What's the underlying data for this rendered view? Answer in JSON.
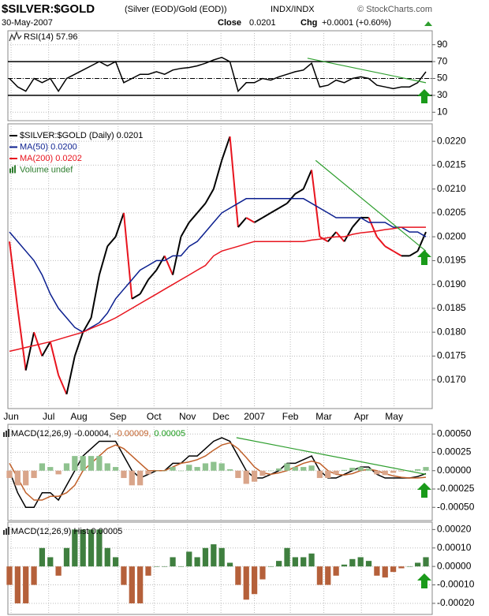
{
  "header": {
    "symbol": "$SILVER:$GOLD",
    "description": "(Silver (EOD)/Gold (EOD))",
    "exchange": "INDX/INDX",
    "source": "© StockCharts.com",
    "date": "30-May-2007",
    "close_label": "Close",
    "close": "0.0201",
    "chg_label": "Chg",
    "chg": "+0.0001 (+0.60%)"
  },
  "chart_data": [
    {
      "type": "line",
      "title": "RSI(14) 57.96",
      "xlim": [
        0,
        51
      ],
      "ylim": [
        0,
        100
      ],
      "yticks": [
        90,
        70,
        50,
        30,
        10
      ],
      "overbought": 70,
      "oversold": 30,
      "midline": 50,
      "series": [
        {
          "color": "#000000",
          "values": [
            50,
            40,
            35,
            50,
            45,
            50,
            35,
            50,
            55,
            60,
            65,
            70,
            65,
            70,
            45,
            50,
            55,
            55,
            58,
            55,
            60,
            62,
            63,
            65,
            68,
            72,
            75,
            70,
            35,
            45,
            45,
            50,
            48,
            52,
            55,
            58,
            60,
            68,
            40,
            42,
            48,
            45,
            50,
            52,
            50,
            42,
            40,
            38,
            40,
            40,
            45,
            57.96
          ]
        }
      ],
      "trendline": {
        "color": "#2e9e2e",
        "x": [
          36.5,
          51
        ],
        "values": [
          74,
          45
        ]
      }
    },
    {
      "type": "line",
      "xlim": [
        0,
        51
      ],
      "ylim": [
        0.0164,
        0.0223
      ],
      "grid": true,
      "yticks": [
        {
          "value": 0.022,
          "label": "0.0220"
        },
        {
          "value": 0.0215,
          "label": "0.0215"
        },
        {
          "value": 0.021,
          "label": "0.0210"
        },
        {
          "value": 0.0205,
          "label": "0.0205"
        },
        {
          "value": 0.02,
          "label": "0.0200"
        },
        {
          "value": 0.0195,
          "label": "0.0195"
        },
        {
          "value": 0.019,
          "label": "0.0190"
        },
        {
          "value": 0.0185,
          "label": "0.0185"
        },
        {
          "value": 0.018,
          "label": "0.0180"
        },
        {
          "value": 0.0175,
          "label": "0.0175"
        },
        {
          "value": 0.017,
          "label": "0.0170"
        }
      ],
      "xticks": [
        {
          "value": 0.2,
          "label": "Jun"
        },
        {
          "value": 4.8,
          "label": "Jul"
        },
        {
          "value": 8.5,
          "label": "Aug"
        },
        {
          "value": 13.3,
          "label": "Sep"
        },
        {
          "value": 17.7,
          "label": "Oct"
        },
        {
          "value": 21.8,
          "label": "Nov"
        },
        {
          "value": 25.9,
          "label": "Dec"
        },
        {
          "value": 30,
          "label": "2007"
        },
        {
          "value": 34.4,
          "label": "Feb"
        },
        {
          "value": 38.5,
          "label": "Mar"
        },
        {
          "value": 43.1,
          "label": "Apr"
        },
        {
          "value": 47.1,
          "label": "May"
        }
      ],
      "series": [
        {
          "name": "$SILVER:$GOLD (Daily) 0.0201",
          "color": "#000000",
          "down_color": "#e8141e",
          "values": [
            0.0199,
            0.0185,
            0.0172,
            0.018,
            0.0175,
            0.0178,
            0.0171,
            0.0167,
            0.0175,
            0.018,
            0.0183,
            0.0192,
            0.0198,
            0.02,
            0.0205,
            0.0187,
            0.0188,
            0.0191,
            0.0193,
            0.0196,
            0.0192,
            0.02,
            0.0203,
            0.0205,
            0.0207,
            0.021,
            0.0216,
            0.0221,
            0.0202,
            0.0204,
            0.0203,
            0.0204,
            0.0205,
            0.0206,
            0.0207,
            0.0209,
            0.021,
            0.0214,
            0.02,
            0.0199,
            0.0201,
            0.0199,
            0.0202,
            0.0204,
            0.0204,
            0.02,
            0.0198,
            0.0197,
            0.0196,
            0.0196,
            0.0197,
            0.0201
          ]
        },
        {
          "name": "MA(50) 0.0200",
          "color": "#0b1f8f",
          "values": [
            0.0201,
            0.0199,
            0.0197,
            0.0195,
            0.0192,
            0.0188,
            0.0185,
            0.0183,
            0.0181,
            0.018,
            0.0181,
            0.0182,
            0.0184,
            0.0187,
            0.0189,
            0.0191,
            0.0193,
            0.0194,
            0.0195,
            0.0195,
            0.0196,
            0.0196,
            0.0198,
            0.0199,
            0.0201,
            0.0203,
            0.0205,
            0.0206,
            0.0207,
            0.0208,
            0.0208,
            0.0208,
            0.0208,
            0.0208,
            0.0208,
            0.0208,
            0.0208,
            0.0207,
            0.0206,
            0.0205,
            0.0204,
            0.0204,
            0.0204,
            0.0204,
            0.0203,
            0.0203,
            0.0203,
            0.0202,
            0.0202,
            0.0201,
            0.0201,
            0.02
          ]
        },
        {
          "name": "MA(200) 0.0202",
          "color": "#e8141e",
          "values": [
            0.0176,
            0.01764,
            0.01768,
            0.01772,
            0.01776,
            0.0178,
            0.01785,
            0.0179,
            0.01795,
            0.018,
            0.01808,
            0.01815,
            0.01822,
            0.0183,
            0.0184,
            0.0185,
            0.0186,
            0.0187,
            0.0188,
            0.0189,
            0.019,
            0.0191,
            0.0192,
            0.0193,
            0.0194,
            0.0196,
            0.0197,
            0.01975,
            0.0198,
            0.01985,
            0.0199,
            0.0199,
            0.0199,
            0.0199,
            0.0199,
            0.0199,
            0.0199,
            0.01993,
            0.01995,
            0.01998,
            0.02,
            0.02,
            0.02005,
            0.02008,
            0.0201,
            0.02012,
            0.02015,
            0.02017,
            0.0202,
            0.0202,
            0.0202,
            0.0202
          ]
        }
      ],
      "legend_extra": {
        "name": "Volume undef",
        "color": "#2e7d2e"
      },
      "trendline": {
        "color": "#2e9e2e",
        "x": [
          37.5,
          51
        ],
        "values": [
          0.0216,
          0.0197
        ]
      }
    },
    {
      "type": "line",
      "title": "MACD(12,26,9)",
      "xlim": [
        0,
        51
      ],
      "ylim": [
        -0.00068,
        0.00061
      ],
      "yticks": [
        {
          "value": 0.0005,
          "label": "0.00050"
        },
        {
          "value": 0.00025,
          "label": "0.00025"
        },
        {
          "value": 0,
          "label": "0.00000"
        },
        {
          "value": -0.00025,
          "label": "-0.00025"
        },
        {
          "value": -0.0005,
          "label": "-0.00050"
        }
      ],
      "series": [
        {
          "name": "-0.00004,",
          "color": "#000000",
          "values": [
            0,
            -0.0003,
            -0.0005,
            -0.0005,
            -0.0003,
            -0.0003,
            -0.0004,
            -0.0002,
            0,
            0.0002,
            0.0003,
            0.0004,
            0.0004,
            0.0004,
            0.0002,
            0,
            -0.0001,
            -5e-05,
            0,
            0,
            0.0001,
            0.0001,
            0.0002,
            0.0002,
            0.0003,
            0.0004,
            0.00045,
            0.0004,
            0.0002,
            0,
            -0.0001,
            -0.0001,
            -5e-05,
            0,
            0.0001,
            0.0001,
            0.00015,
            0.0002,
            0,
            -0.0001,
            -0.0001,
            -5e-05,
            0,
            5e-05,
            5e-05,
            -5e-05,
            -0.0001,
            -0.0001,
            -0.0001,
            -0.0001,
            -8e-05,
            -4e-05
          ]
        },
        {
          "name": "-0.00009,",
          "color": "#c0602a",
          "values": [
            0.0001,
            -0.0001,
            -0.0003,
            -0.0004,
            -0.0004,
            -0.00035,
            -0.00035,
            -0.0003,
            -0.0002,
            0,
            0.0001,
            0.0002,
            0.0003,
            0.00035,
            0.0003,
            0.0002,
            0.0001,
            0,
            0,
            0,
            5e-05,
            0.0001,
            0.00012,
            0.00015,
            0.0002,
            0.00028,
            0.00035,
            0.00038,
            0.0003,
            0.00018,
            5e-05,
            -3e-05,
            -5e-05,
            -3e-05,
            0,
            5e-05,
            0.0001,
            0.00013,
            0.0001,
            0,
            -5e-05,
            -6e-05,
            -4e-05,
            0,
            2e-05,
            0,
            -4e-05,
            -7e-05,
            -9e-05,
            -0.0001,
            -0.0001,
            -9e-05
          ]
        },
        {
          "name": "0.00005",
          "type": "bar",
          "color": "#8fc28f",
          "negative_color": "#d9a58a",
          "values": [
            -0.0001,
            -0.0002,
            -0.0002,
            -0.0001,
            0.0001,
            5e-05,
            -5e-05,
            0.0001,
            0.0002,
            0.0002,
            0.0002,
            0.0002,
            0.0001,
            5e-05,
            -0.0001,
            -0.0002,
            -0.0002,
            -5e-05,
            0,
            0,
            5e-05,
            0,
            8e-05,
            5e-05,
            0.0001,
            0.00012,
            0.0001,
            2e-05,
            -0.0001,
            -0.00018,
            -0.00015,
            -7e-05,
            0,
            3e-05,
            0.0001,
            5e-05,
            5e-05,
            7e-05,
            -0.0001,
            -0.0001,
            -5e-05,
            1e-05,
            4e-05,
            5e-05,
            3e-05,
            -5e-05,
            -6e-05,
            -3e-05,
            -1e-05,
            0,
            2e-05,
            5e-05
          ]
        }
      ],
      "trendline": {
        "color": "#2e9e2e",
        "x": [
          27.8,
          51
        ],
        "values": [
          0.00045,
          -5e-05
        ]
      }
    },
    {
      "type": "line",
      "title": "MACD(12,26,9) Hist 0.00005",
      "xlim": [
        0,
        51
      ],
      "ylim": [
        -0.00026,
        0.00024
      ],
      "yticks": [
        {
          "value": 0.0002,
          "label": "0.00020"
        },
        {
          "value": 0.0001,
          "label": "0.00010"
        },
        {
          "value": 0,
          "label": "0.00000"
        },
        {
          "value": -0.0001,
          "label": "-0.00010"
        },
        {
          "value": -0.0002,
          "label": "-0.00020"
        }
      ],
      "series": [
        {
          "type": "bar",
          "color": "#3f7f3f",
          "negative_color": "#b5603a",
          "values": [
            -0.0001,
            -0.0002,
            -0.0002,
            -0.0001,
            0.0001,
            5e-05,
            -5e-05,
            0.0001,
            0.0002,
            0.0002,
            0.0002,
            0.0002,
            0.0001,
            5e-05,
            -0.0001,
            -0.0002,
            -0.0002,
            -5e-05,
            0,
            0,
            5e-05,
            0,
            8e-05,
            5e-05,
            0.0001,
            0.00012,
            0.0001,
            2e-05,
            -0.0001,
            -0.00018,
            -0.00015,
            -7e-05,
            0,
            3e-05,
            0.0001,
            5e-05,
            5e-05,
            7e-05,
            -0.0001,
            -0.0001,
            -5e-05,
            1e-05,
            4e-05,
            5e-05,
            3e-05,
            -5e-05,
            -6e-05,
            -3e-05,
            -1e-05,
            0,
            2e-05,
            5e-05
          ]
        }
      ]
    }
  ]
}
